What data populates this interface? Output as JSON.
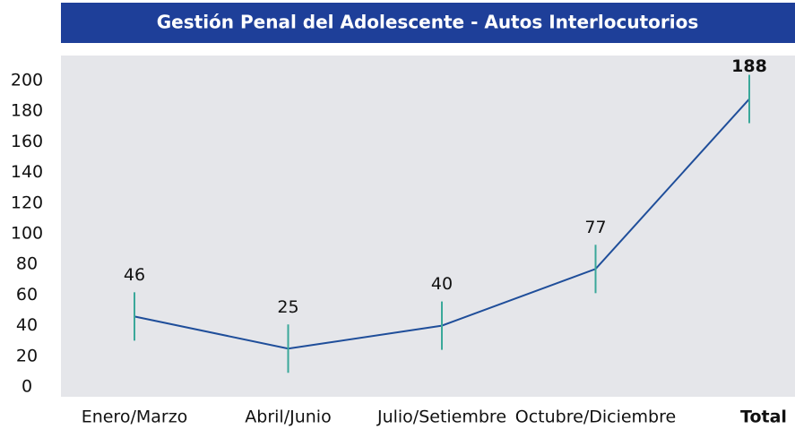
{
  "chart_data": {
    "type": "line",
    "title": "Gestión Penal del Adolescente - Autos Interlocutorios",
    "categories": [
      "Enero/Marzo",
      "Abril/Junio",
      "Julio/Setiembre",
      "Octubre/Diciembre",
      "Total"
    ],
    "values": [
      46,
      25,
      40,
      77,
      188
    ],
    "color": "#1f4e9a",
    "marker_color": "#3aa89a",
    "ylim": [
      0,
      200
    ],
    "yticks": [
      0,
      20,
      40,
      60,
      80,
      100,
      120,
      140,
      160,
      180,
      200
    ],
    "grid": false
  }
}
